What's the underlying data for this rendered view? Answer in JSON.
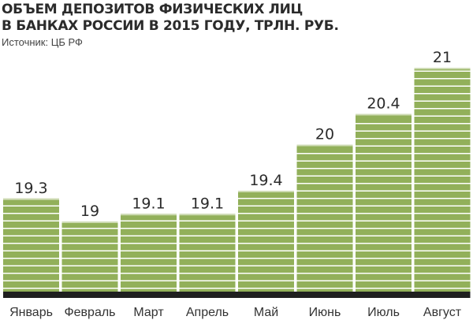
{
  "chart_data": {
    "type": "bar",
    "title_lines": [
      "ОБЪЕМ ДЕПОЗИТОВ ФИЗИЧЕСКИХ ЛИЦ",
      "В БАНКАХ РОССИИ В 2015 ГОДУ, ТРЛН. РУБ."
    ],
    "source": "Источник: ЦБ РФ",
    "categories": [
      "Январь",
      "Февраль",
      "Март",
      "Апрель",
      "Май",
      "Июнь",
      "Июль",
      "Август"
    ],
    "values": [
      19.3,
      19,
      19.1,
      19.1,
      19.4,
      20,
      20.4,
      21
    ],
    "value_labels": [
      "19.3",
      "19",
      "19.1",
      "19.1",
      "19.4",
      "20",
      "20.4",
      "21"
    ],
    "bar_color": "#92b05a",
    "stripe_color": "#ffffff",
    "baseline_color": "#1f1f1f",
    "grid": false
  }
}
